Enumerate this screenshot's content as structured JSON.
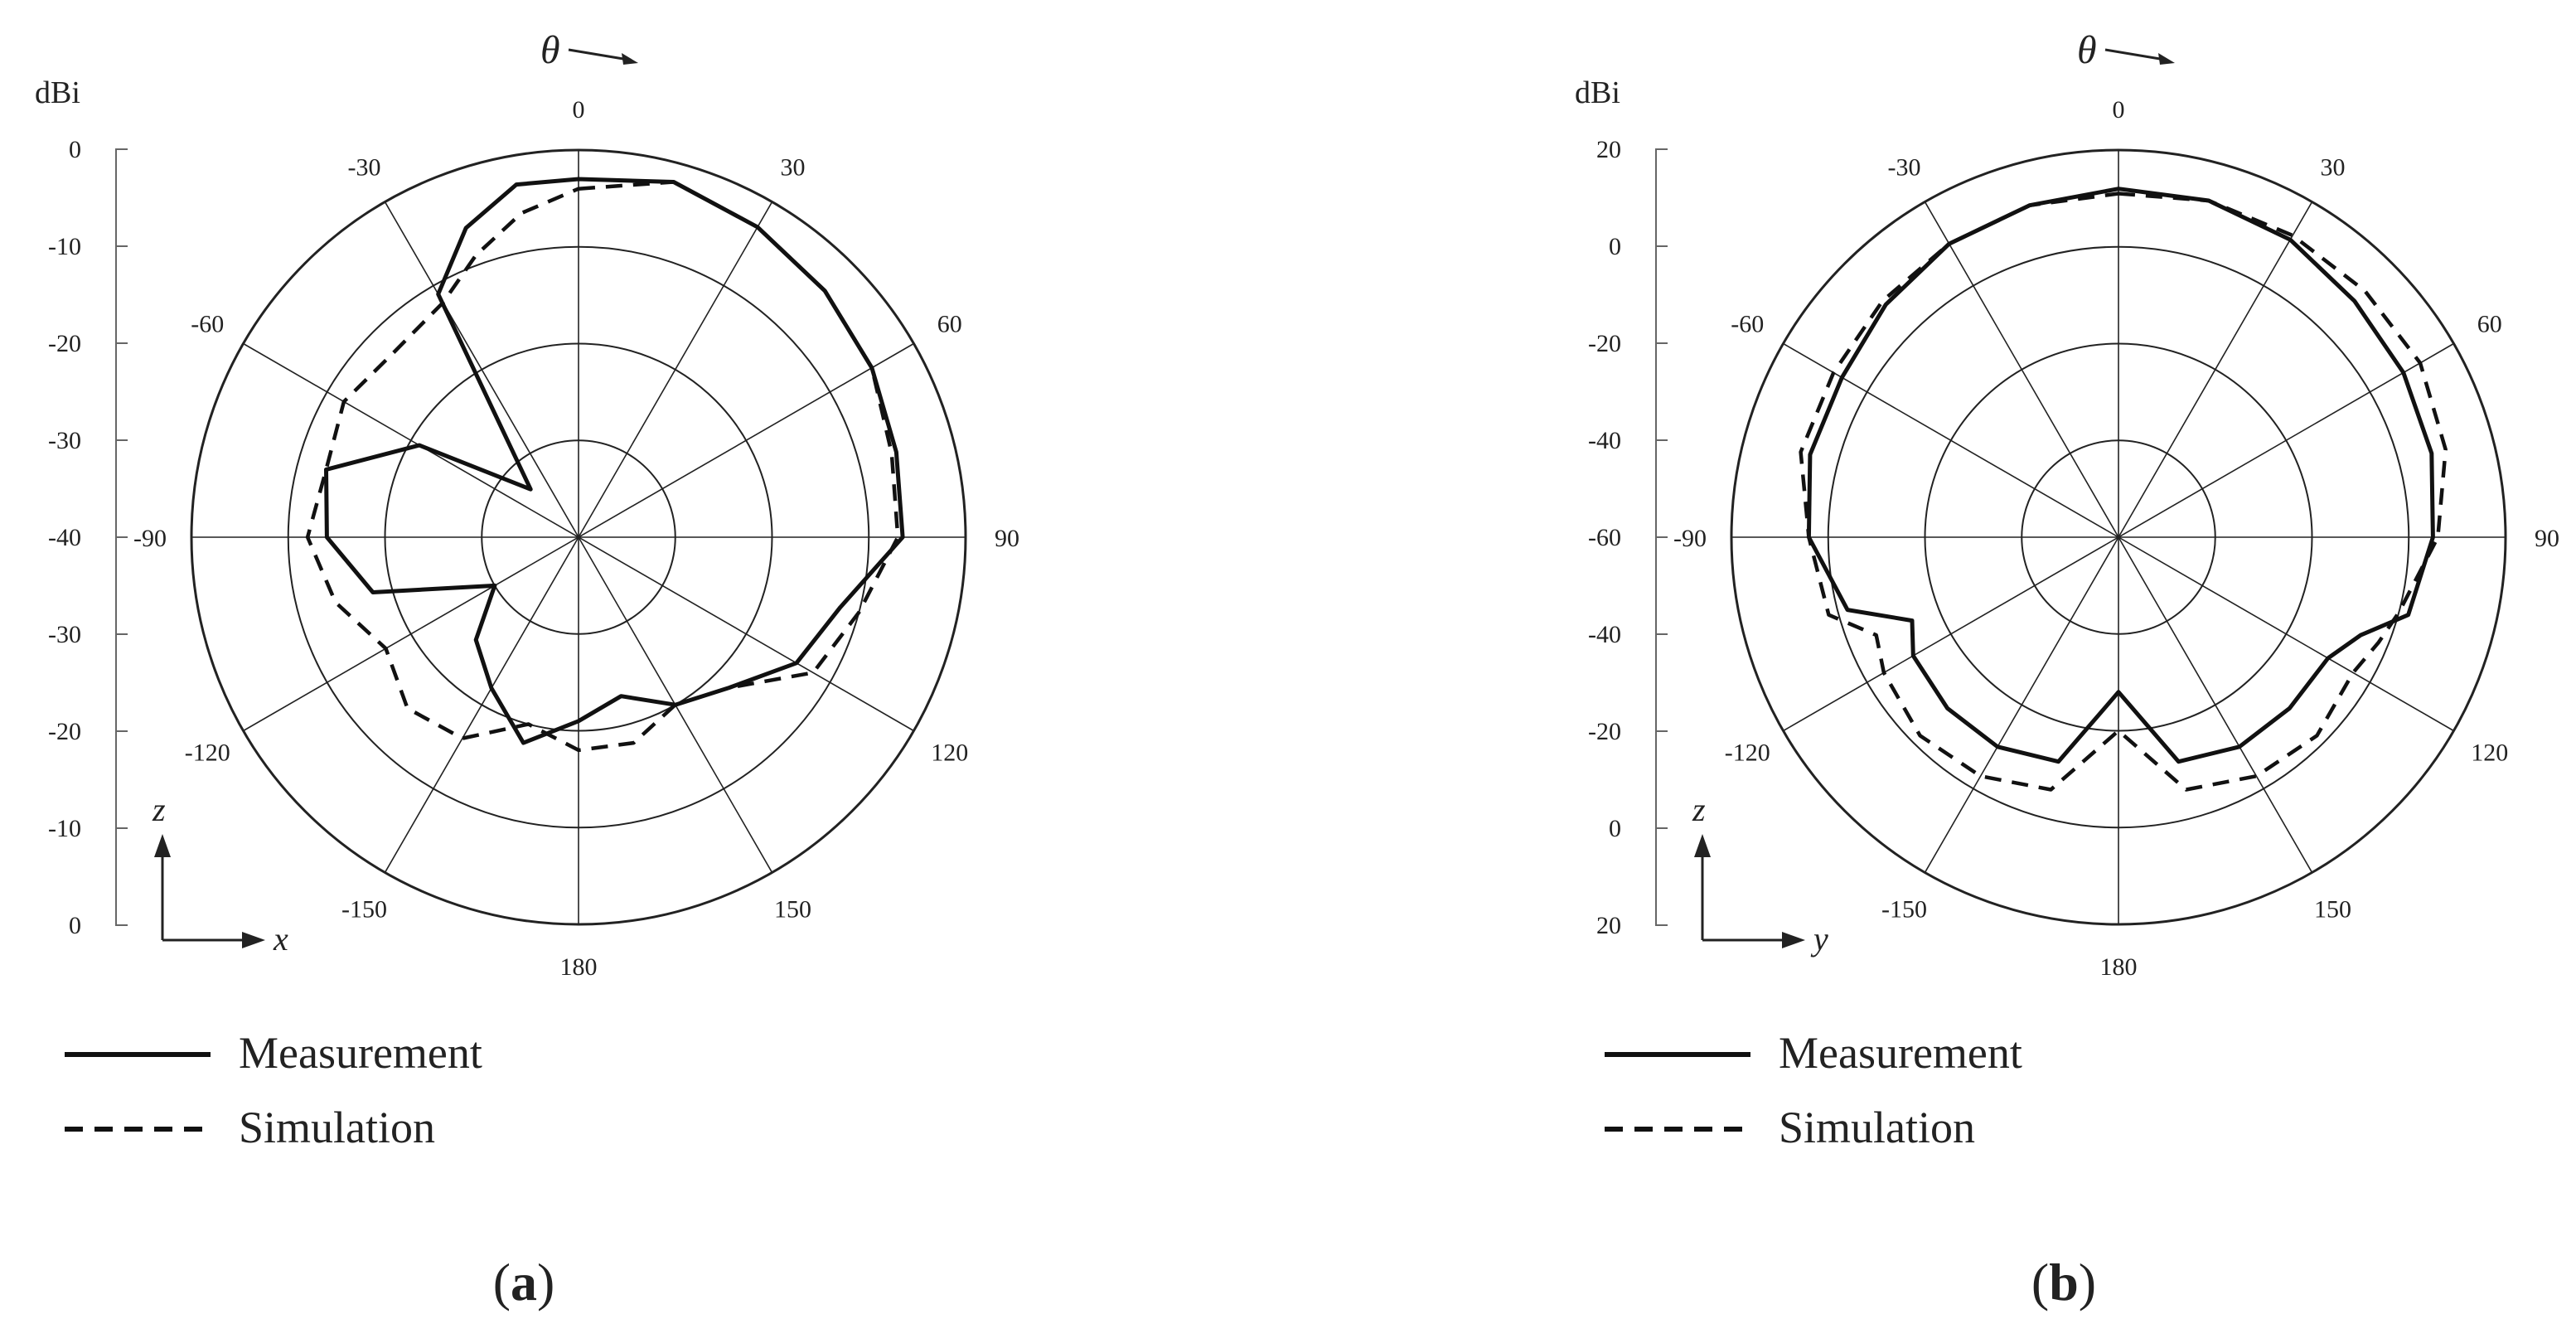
{
  "figure": {
    "panels": [
      {
        "caption": {
          "open": "(",
          "letter": "a",
          "close": ")"
        },
        "theta_label": "θ",
        "unit_label": "dBi",
        "radial_tick_labels": [
          "0",
          "-10",
          "-20",
          "-30",
          "-40",
          "-30",
          "-20",
          "-10",
          "0"
        ],
        "angle_labels": [
          "0",
          "30",
          "60",
          "90",
          "120",
          "150",
          "180",
          "-150",
          "-120",
          "-90",
          "-60",
          "-30"
        ],
        "axis_vertical": "z",
        "axis_horizontal": "x",
        "legend": {
          "measurement": "Measurement",
          "simulation": "Simulation"
        }
      },
      {
        "caption": {
          "open": "(",
          "letter": "b",
          "close": ")"
        },
        "theta_label": "θ",
        "unit_label": "dBi",
        "radial_tick_labels": [
          "20",
          "0",
          "-20",
          "-40",
          "-60",
          "-40",
          "-20",
          "0",
          "20"
        ],
        "angle_labels": [
          "0",
          "30",
          "60",
          "90",
          "120",
          "150",
          "180",
          "-150",
          "-120",
          "-90",
          "-60",
          "-30"
        ],
        "axis_vertical": "z",
        "axis_horizontal": "y",
        "legend": {
          "measurement": "Measurement",
          "simulation": "Simulation"
        }
      }
    ]
  },
  "chart_data": [
    {
      "type": "polar-line",
      "radial_axis": {
        "unit": "dBi",
        "min": -40,
        "max": 0,
        "rings": [
          -40,
          -30,
          -20,
          -10,
          0
        ]
      },
      "angle_unit": "deg",
      "spokes_every_deg": 30,
      "series": [
        {
          "name": "Measurement",
          "style": "solid",
          "theta": [
            0,
            15,
            30,
            45,
            60,
            75,
            90,
            105,
            120,
            135,
            150,
            165,
            180,
            -165,
            -150,
            -135,
            -120,
            -105,
            -90,
            -75,
            -60,
            -45,
            -30,
            -20,
            -10
          ],
          "r_dBi": [
            -3,
            -2,
            -3,
            -4,
            -5,
            -6,
            -6.5,
            -12,
            -14,
            -18,
            -20,
            -23,
            -21,
            -18,
            -22,
            -25,
            -30,
            -18,
            -14,
            -13,
            -21,
            -33,
            -11,
            -6,
            -3
          ]
        },
        {
          "name": "Simulation",
          "style": "dashed",
          "theta": [
            0,
            15,
            30,
            45,
            60,
            75,
            90,
            105,
            120,
            135,
            150,
            165,
            180,
            -165,
            -150,
            -135,
            -120,
            -105,
            -90,
            -75,
            -60,
            -45,
            -30,
            -20,
            -10
          ],
          "r_dBi": [
            -4,
            -2,
            -3,
            -4,
            -5,
            -6.5,
            -7,
            -10,
            -12,
            -18,
            -20,
            -18,
            -18,
            -20,
            -16,
            -15,
            -17,
            -14,
            -12,
            -13,
            -12,
            -13,
            -12,
            -9,
            -6
          ]
        }
      ]
    },
    {
      "type": "polar-line",
      "radial_axis": {
        "unit": "dBi",
        "min": -60,
        "max": 20,
        "rings": [
          -60,
          -40,
          -20,
          0,
          20
        ]
      },
      "angle_unit": "deg",
      "spokes_every_deg": 30,
      "series": [
        {
          "name": "Measurement",
          "style": "solid",
          "theta": [
            0,
            15,
            30,
            45,
            60,
            75,
            90,
            105,
            112,
            120,
            135,
            150,
            165,
            180,
            -165,
            -150,
            -135,
            -120,
            -112,
            -105,
            -90,
            -75,
            -60,
            -45,
            -30,
            -15
          ],
          "r_dBi": [
            12,
            12,
            11,
            9,
            8,
            7,
            5,
            2,
            -6,
            -10,
            -10,
            -10,
            -12,
            -28,
            -12,
            -10,
            -10,
            -11,
            -14,
            -2,
            4,
            6,
            6,
            8,
            10,
            11
          ]
        },
        {
          "name": "Simulation",
          "style": "dashed",
          "theta": [
            0,
            15,
            30,
            45,
            60,
            75,
            90,
            105,
            112,
            120,
            135,
            150,
            165,
            180,
            -165,
            -150,
            -135,
            -120,
            -112,
            -105,
            -90,
            -75,
            -60,
            -45,
            -30,
            -15
          ],
          "r_dBi": [
            11,
            12,
            12,
            12,
            12,
            10,
            6,
            0,
            -2,
            -4,
            -2,
            -3,
            -6,
            -20,
            -6,
            -3,
            -2,
            -4,
            -6,
            2,
            4,
            8,
            8,
            9,
            10,
            11
          ]
        }
      ]
    }
  ]
}
